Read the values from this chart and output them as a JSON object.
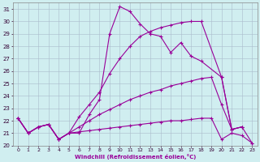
{
  "xlabel": "Windchill (Refroidissement éolien,°C)",
  "background_color": "#d0eef0",
  "grid_color": "#aabbcc",
  "line_color": "#990099",
  "xlim": [
    -0.5,
    23.5
  ],
  "ylim": [
    20,
    31.5
  ],
  "xticks": [
    0,
    1,
    2,
    3,
    4,
    5,
    6,
    7,
    8,
    9,
    10,
    11,
    12,
    13,
    14,
    15,
    16,
    17,
    18,
    19,
    20,
    21,
    22,
    23
  ],
  "yticks": [
    20,
    21,
    22,
    23,
    24,
    25,
    26,
    27,
    28,
    29,
    30,
    31
  ],
  "line1_x": [
    0,
    1,
    2,
    3,
    4,
    5,
    6,
    7,
    8,
    9,
    10,
    11,
    12,
    13,
    14,
    15,
    16,
    17,
    18,
    20,
    21,
    22
  ],
  "line1_y": [
    22.2,
    21.0,
    21.5,
    21.7,
    20.5,
    21.0,
    21.0,
    22.5,
    23.7,
    29.0,
    31.2,
    30.8,
    29.8,
    29.0,
    28.8,
    27.5,
    28.3,
    27.2,
    26.8,
    25.5,
    21.3,
    21.5
  ],
  "line2_x": [
    0,
    1,
    2,
    3,
    4,
    5,
    6,
    7,
    8,
    9,
    10,
    11,
    12,
    13,
    14,
    15,
    16,
    17,
    18,
    20,
    21,
    22
  ],
  "line2_y": [
    22.2,
    21.0,
    21.5,
    21.7,
    20.5,
    21.0,
    22.3,
    23.3,
    24.3,
    25.8,
    27.0,
    28.0,
    28.8,
    29.2,
    29.5,
    29.7,
    29.9,
    30.0,
    30.0,
    25.5,
    21.3,
    21.5
  ],
  "line3_x": [
    0,
    1,
    2,
    3,
    4,
    5,
    6,
    7,
    8,
    9,
    10,
    11,
    12,
    13,
    14,
    15,
    16,
    17,
    18,
    19,
    20,
    21,
    22,
    23
  ],
  "line3_y": [
    22.2,
    21.0,
    21.5,
    21.7,
    20.5,
    21.0,
    21.5,
    22.0,
    22.5,
    22.9,
    23.3,
    23.7,
    24.0,
    24.3,
    24.5,
    24.8,
    25.0,
    25.2,
    25.4,
    25.5,
    23.3,
    21.3,
    21.5,
    20.2
  ],
  "line4_x": [
    0,
    1,
    2,
    3,
    4,
    5,
    6,
    7,
    8,
    9,
    10,
    11,
    12,
    13,
    14,
    15,
    16,
    17,
    18,
    19,
    20,
    21,
    22,
    23
  ],
  "line4_y": [
    22.2,
    21.0,
    21.5,
    21.7,
    20.5,
    21.0,
    21.1,
    21.2,
    21.3,
    21.4,
    21.5,
    21.6,
    21.7,
    21.8,
    21.9,
    22.0,
    22.0,
    22.1,
    22.2,
    22.2,
    20.5,
    21.0,
    20.8,
    20.2
  ]
}
